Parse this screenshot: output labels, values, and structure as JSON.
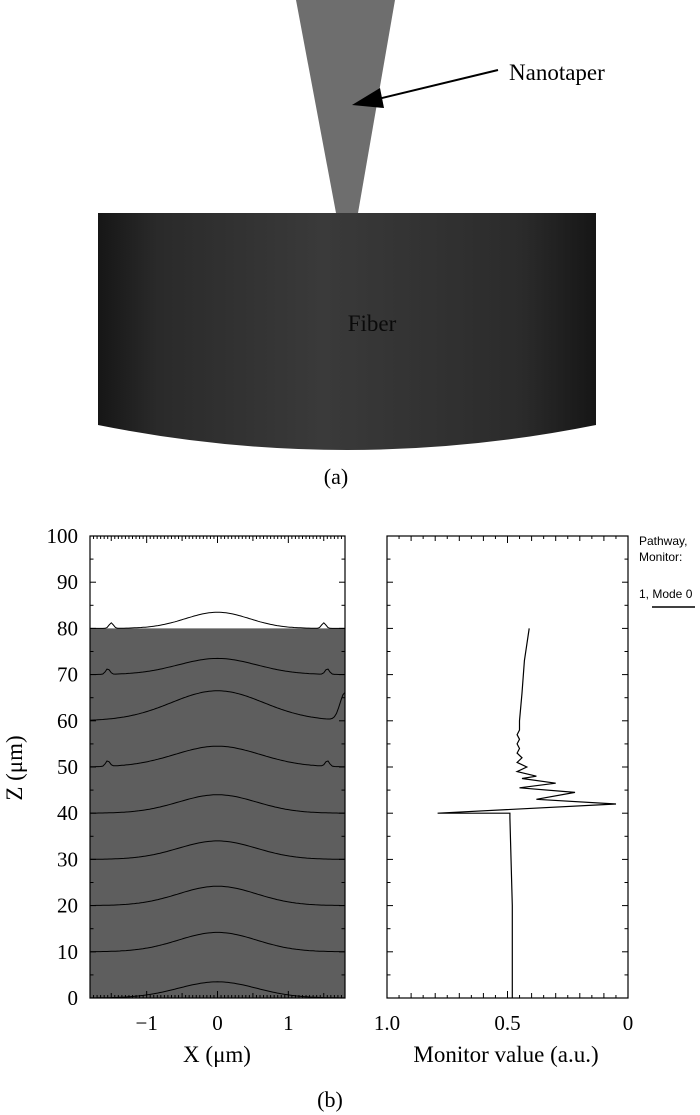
{
  "panel_a": {
    "caption": "(a)",
    "nanotaper_label": "Nanotaper",
    "fiber_label": "Fiber",
    "colors": {
      "taper": "#6e6e6e",
      "fiber_center": "#393939",
      "fiber_edge": "#161616"
    }
  },
  "panel_b": {
    "caption": "(b)",
    "legend": {
      "line1": "Pathway,",
      "line2": "Monitor:",
      "line3": "1, Mode 0"
    },
    "colors": {
      "field": "#5e5e5e",
      "line": "#000000"
    }
  },
  "chart_data": [
    {
      "type": "line",
      "name": "field-contour-plot",
      "xlabel": "X (μm)",
      "ylabel": "Z (μm)",
      "xlim": [
        -1.8,
        1.8
      ],
      "ylim": [
        0,
        100
      ],
      "x_ticks": [
        -1,
        0,
        1
      ],
      "x_tick_labels": [
        "−1",
        "0",
        "1"
      ],
      "y_ticks": [
        0,
        10,
        20,
        30,
        40,
        50,
        60,
        70,
        80,
        90,
        100
      ],
      "shaded_region": {
        "z_from": 0,
        "z_to": 80
      },
      "contours": [
        {
          "z0": 0,
          "amp": 3.5,
          "width": 0.55
        },
        {
          "z0": 10,
          "amp": 4.2,
          "width": 0.55
        },
        {
          "z0": 20,
          "amp": 4.2,
          "width": 0.55
        },
        {
          "z0": 30,
          "amp": 4.0,
          "width": 0.55
        },
        {
          "z0": 40,
          "amp": 4.0,
          "width": 0.55
        },
        {
          "z0": 50,
          "amp": 4.5,
          "width": 0.6,
          "bumps": [
            -1.55,
            1.55
          ]
        },
        {
          "z0": 60,
          "amp": 6.5,
          "width": 0.65,
          "edge_rise": 6
        },
        {
          "z0": 70,
          "amp": 3.5,
          "width": 0.55,
          "bumps": [
            -1.55,
            1.55
          ]
        },
        {
          "z0": 80,
          "amp": 3.5,
          "width": 0.45,
          "bumps": [
            -1.5,
            1.5
          ],
          "above": true
        }
      ]
    },
    {
      "type": "line",
      "name": "monitor-value-plot",
      "xlabel": "Monitor value (a.u.)",
      "ylabel": "",
      "xlim": [
        1.0,
        0
      ],
      "ylim": [
        0,
        100
      ],
      "x_ticks": [
        1.0,
        0.5,
        0
      ],
      "x_tick_labels": [
        "1.0",
        "0.5",
        "0"
      ],
      "series": [
        {
          "name": "1, Mode 0",
          "x": [
            0.48,
            0.48,
            0.49,
            0.49,
            0.79,
            0.05,
            0.38,
            0.22,
            0.45,
            0.3,
            0.44,
            0.38,
            0.46,
            0.42,
            0.46,
            0.44,
            0.46,
            0.45,
            0.46,
            0.45,
            0.46,
            0.45,
            0.45,
            0.44,
            0.43,
            0.41
          ],
          "y": [
            0,
            20,
            39.0,
            40.0,
            40.0,
            42.0,
            43.0,
            44.5,
            45.5,
            46.5,
            47.5,
            48.0,
            49.0,
            50.0,
            51.0,
            52.0,
            53.0,
            54.0,
            55.0,
            56.0,
            57.0,
            58.0,
            60.0,
            66.0,
            73.0,
            80.0
          ]
        }
      ]
    }
  ]
}
